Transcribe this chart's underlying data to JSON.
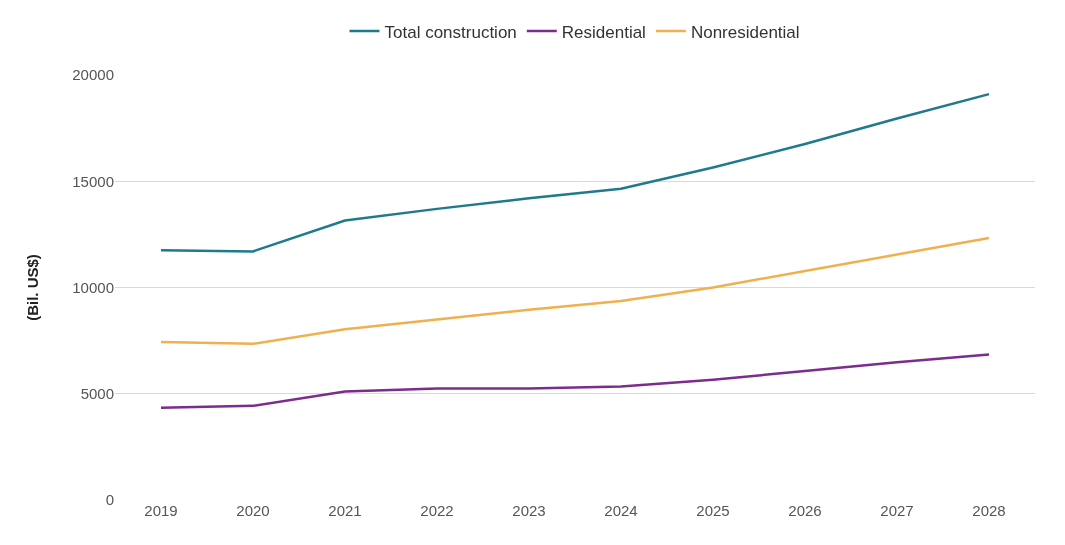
{
  "chart_data": {
    "type": "line",
    "ylabel": "(Bil. US$)",
    "categories": [
      "2019",
      "2020",
      "2021",
      "2022",
      "2023",
      "2024",
      "2025",
      "2026",
      "2027",
      "2028"
    ],
    "series": [
      {
        "name": "Total construction",
        "color": "#1f7a8c",
        "values": [
          11750,
          11700,
          13150,
          13700,
          14200,
          14650,
          15650,
          16750,
          17950,
          19100
        ]
      },
      {
        "name": "Residential",
        "color": "#7b2d8e",
        "values": [
          4340,
          4430,
          5110,
          5250,
          5250,
          5340,
          5660,
          6070,
          6480,
          6850
        ]
      },
      {
        "name": "Nonresidential",
        "color": "#f0b04f",
        "values": [
          7440,
          7350,
          8040,
          8490,
          8950,
          9360,
          10000,
          10780,
          11550,
          12330
        ]
      }
    ],
    "ylim": [
      0,
      20000
    ],
    "yticks": [
      0,
      5000,
      10000,
      15000,
      20000
    ],
    "grid": "y",
    "legend": "top",
    "marker": "none",
    "line_style": "solid"
  }
}
